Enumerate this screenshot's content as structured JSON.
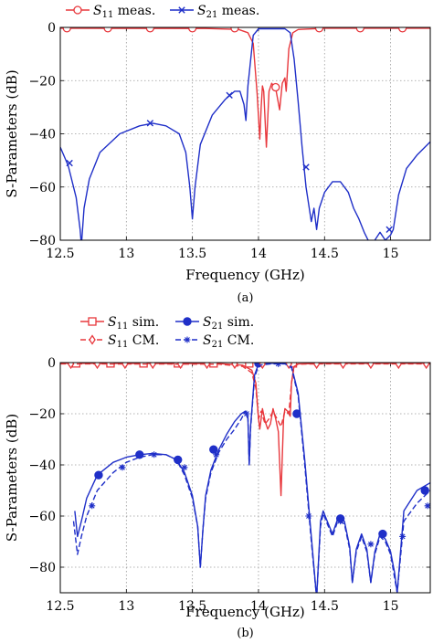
{
  "chart_data": [
    {
      "type": "line",
      "panel": "a",
      "caption": "(a)",
      "xlabel": "Frequency (GHz)",
      "ylabel": "S-Parameters (dB)",
      "xlim": [
        12.5,
        15.3
      ],
      "ylim": [
        -80,
        0
      ],
      "xticks": [
        12.5,
        13,
        13.5,
        14,
        14.5,
        15
      ],
      "yticks": [
        0,
        -20,
        -40,
        -60,
        -80
      ],
      "grid": true,
      "legend_position": "top-center",
      "series": [
        {
          "name": "S11 meas.",
          "label_main": "S",
          "label_sub": "11",
          "label_rest": " meas.",
          "color": "#e8383d",
          "dash": "solid",
          "marker": "circle-open",
          "x": [
            12.5,
            13.6,
            13.85,
            13.92,
            13.96,
            13.99,
            14.01,
            14.02,
            14.03,
            14.04,
            14.06,
            14.08,
            14.1,
            14.13,
            14.16,
            14.18,
            14.2,
            14.21,
            14.23,
            14.26,
            14.3,
            14.5,
            15.3
          ],
          "y": [
            -0.3,
            -0.4,
            -0.8,
            -2,
            -6,
            -25,
            -42,
            -30,
            -22,
            -24,
            -45,
            -24,
            -21,
            -23,
            -31,
            -21,
            -19,
            -24,
            -8,
            -2,
            -0.8,
            -0.3,
            -0.3
          ],
          "markers_x": [
            12.55,
            12.86,
            13.18,
            13.5,
            13.82,
            14.13,
            14.46,
            14.77,
            15.09
          ],
          "markers_y": [
            -0.3,
            -0.3,
            -0.3,
            -0.3,
            -0.3,
            -22.5,
            -0.3,
            -0.3,
            -0.3
          ]
        },
        {
          "name": "S21 meas.",
          "label_main": "S",
          "label_sub": "21",
          "label_rest": " meas.",
          "color": "#1f2fc8",
          "dash": "solid",
          "marker": "x",
          "x": [
            12.5,
            12.56,
            12.62,
            12.65,
            12.66,
            12.68,
            12.72,
            12.8,
            12.95,
            13.1,
            13.2,
            13.3,
            13.4,
            13.45,
            13.48,
            13.5,
            13.52,
            13.56,
            13.65,
            13.75,
            13.82,
            13.86,
            13.89,
            13.905,
            13.92,
            13.96,
            14.0,
            14.1,
            14.2,
            14.24,
            14.27,
            14.3,
            14.33,
            14.36,
            14.4,
            14.42,
            14.44,
            14.46,
            14.5,
            14.56,
            14.62,
            14.68,
            14.72,
            14.76,
            14.8,
            14.83,
            14.85,
            14.88,
            14.92,
            14.96,
            15.0,
            15.02,
            15.06,
            15.12,
            15.2,
            15.3
          ],
          "y": [
            -45,
            -52,
            -64,
            -76,
            -82,
            -68,
            -57,
            -47,
            -40,
            -37,
            -36,
            -37,
            -40,
            -47,
            -60,
            -72,
            -60,
            -44,
            -33,
            -27,
            -24,
            -24,
            -29,
            -35,
            -22,
            -3,
            -0.5,
            -0.5,
            -0.5,
            -2,
            -12,
            -28,
            -45,
            -60,
            -73,
            -68,
            -76,
            -68,
            -62,
            -58,
            -58,
            -62,
            -68,
            -72,
            -77,
            -80,
            -83,
            -80,
            -77,
            -80,
            -78,
            -76,
            -63,
            -53,
            -48,
            -43
          ],
          "markers_x": [
            12.57,
            13.18,
            13.78,
            14.36,
            14.99
          ],
          "markers_y": [
            -51,
            -36,
            -25.5,
            -52.5,
            -76
          ]
        }
      ]
    },
    {
      "type": "line",
      "panel": "b",
      "caption": "(b)",
      "xlabel": "Frequency (GHz)",
      "ylabel": "S-Parameters (dB)",
      "xlim": [
        12.5,
        15.3
      ],
      "ylim": [
        -90,
        0
      ],
      "xticks": [
        12.5,
        13,
        13.5,
        14,
        14.5,
        15
      ],
      "yticks": [
        0,
        -20,
        -40,
        -60,
        -80
      ],
      "grid": true,
      "legend_position": "top-center",
      "series": [
        {
          "name": "S11 sim.",
          "label_main": "S",
          "label_sub": "11",
          "label_rest": " sim.",
          "color": "#e8383d",
          "dash": "solid",
          "marker": "square-open",
          "x": [
            12.5,
            13.7,
            13.88,
            13.95,
            13.98,
            14.0,
            14.01,
            14.03,
            14.05,
            14.07,
            14.09,
            14.11,
            14.13,
            14.15,
            14.17,
            14.19,
            14.2,
            14.22,
            14.24,
            14.25,
            14.27,
            14.3,
            14.5,
            15.3
          ],
          "y": [
            -0.3,
            -0.4,
            -1,
            -3,
            -8,
            -22,
            -26,
            -18,
            -23,
            -26,
            -24,
            -18,
            -22,
            -27,
            -52,
            -22,
            -18,
            -19,
            -21,
            -8,
            -1,
            -0.5,
            -0.3,
            -0.3
          ],
          "markers_x": [
            12.62,
            12.88,
            13.13,
            13.39,
            13.66,
            13.93,
            14.26
          ],
          "markers_y": [
            -0.3,
            -0.3,
            -0.3,
            -0.3,
            -0.3,
            -0.3,
            -0.3
          ]
        },
        {
          "name": "S21 sim.",
          "label_main": "S",
          "label_sub": "21",
          "label_rest": " sim.",
          "color": "#1f2fc8",
          "dash": "solid",
          "marker": "circle-filled",
          "x": [
            12.61,
            12.63,
            12.66,
            12.7,
            12.78,
            12.9,
            13.0,
            13.1,
            13.2,
            13.3,
            13.38,
            13.44,
            13.5,
            13.54,
            13.56,
            13.58,
            13.6,
            13.64,
            13.7,
            13.76,
            13.82,
            13.87,
            13.9,
            13.92,
            13.93,
            13.94,
            13.97,
            14.0,
            14.1,
            14.2,
            14.25,
            14.3,
            14.35,
            14.4,
            14.44,
            14.47,
            14.49,
            14.52,
            14.56,
            14.6,
            14.65,
            14.69,
            14.71,
            14.74,
            14.78,
            14.82,
            14.85,
            14.88,
            14.92,
            14.96,
            15.0,
            15.03,
            15.05,
            15.1,
            15.2,
            15.3
          ],
          "y": [
            -58,
            -68,
            -62,
            -53,
            -44,
            -39,
            -37,
            -36,
            -35.5,
            -36,
            -38,
            -43,
            -52,
            -64,
            -80,
            -65,
            -52,
            -42,
            -34,
            -28,
            -23,
            -20,
            -19,
            -22,
            -40,
            -25,
            -5,
            -0.5,
            -0.3,
            -0.3,
            -1.5,
            -12,
            -38,
            -68,
            -92,
            -62,
            -58,
            -62,
            -67,
            -61,
            -62,
            -72,
            -86,
            -73,
            -67,
            -73,
            -86,
            -74,
            -67,
            -69,
            -74,
            -82,
            -90,
            -58,
            -50,
            -47
          ],
          "markers_x": [
            12.79,
            13.1,
            13.39,
            13.66,
            14.0,
            14.29,
            14.62,
            14.94,
            15.26
          ],
          "markers_y": [
            -44,
            -36,
            -38,
            -34,
            -0.3,
            -20,
            -61,
            -67,
            -50
          ]
        },
        {
          "name": "S11 CM.",
          "label_main": "S",
          "label_sub": "11",
          "label_rest": " CM.",
          "color": "#e8383d",
          "dash": "dashed",
          "marker": "diamond-open",
          "x": [
            12.5,
            13.7,
            13.88,
            13.95,
            13.98,
            14.0,
            14.02,
            14.05,
            14.08,
            14.11,
            14.14,
            14.17,
            14.2,
            14.23,
            14.25,
            14.27,
            14.3,
            14.5,
            15.3
          ],
          "y": [
            -0.5,
            -0.6,
            -1.5,
            -4,
            -10,
            -22,
            -19,
            -24,
            -22,
            -19,
            -22,
            -25,
            -19,
            -20,
            -8,
            -1.5,
            -0.6,
            -0.5,
            -0.5
          ],
          "markers_x": [
            12.58,
            12.78,
            12.99,
            13.2,
            13.41,
            13.61,
            13.82,
            14.03,
            14.23,
            14.44,
            14.64,
            14.85,
            15.06,
            15.27
          ],
          "markers_y": [
            -0.5,
            -0.5,
            -0.5,
            -0.5,
            -0.5,
            -0.5,
            -0.5,
            -0.5,
            -0.5,
            -0.5,
            -0.5,
            -0.5,
            -0.5,
            -0.5
          ]
        },
        {
          "name": "S21 CM.",
          "label_main": "S",
          "label_sub": "21",
          "label_rest": " CM.",
          "color": "#1f2fc8",
          "dash": "dashed",
          "marker": "star",
          "x": [
            12.6,
            12.63,
            12.66,
            12.7,
            12.78,
            12.9,
            13.0,
            13.1,
            13.2,
            13.3,
            13.38,
            13.44,
            13.5,
            13.54,
            13.56,
            13.58,
            13.6,
            13.64,
            13.7,
            13.76,
            13.82,
            13.87,
            13.9,
            13.92,
            13.93,
            13.94,
            13.97,
            14.0,
            14.1,
            14.2,
            14.25,
            14.3,
            14.35,
            14.4,
            14.44,
            14.47,
            14.49,
            14.52,
            14.56,
            14.6,
            14.65,
            14.69,
            14.71,
            14.74,
            14.78,
            14.82,
            14.85,
            14.88,
            14.92,
            14.96,
            15.0,
            15.03,
            15.05,
            15.1,
            15.2,
            15.3
          ],
          "y": [
            -62,
            -75,
            -68,
            -60,
            -50,
            -43,
            -39,
            -37,
            -36,
            -36,
            -38,
            -44,
            -53,
            -64,
            -80,
            -65,
            -53,
            -43,
            -35,
            -30,
            -26,
            -22,
            -19,
            -21,
            -40,
            -26,
            -6,
            -1,
            -0.5,
            -0.5,
            -2,
            -13,
            -40,
            -70,
            -92,
            -64,
            -59,
            -63,
            -68,
            -62,
            -63,
            -73,
            -86,
            -74,
            -68,
            -74,
            -86,
            -75,
            -68,
            -70,
            -75,
            -84,
            -90,
            -62,
            -55,
            -50
          ],
          "markers_x": [
            12.74,
            12.97,
            13.21,
            13.44,
            13.68,
            13.91,
            14.15,
            14.38,
            14.62,
            14.85,
            15.09,
            15.28
          ],
          "markers_y": [
            -56,
            -41,
            -36,
            -41,
            -36,
            -20,
            -0.5,
            -60,
            -62,
            -71,
            -68,
            -56
          ]
        }
      ]
    }
  ]
}
